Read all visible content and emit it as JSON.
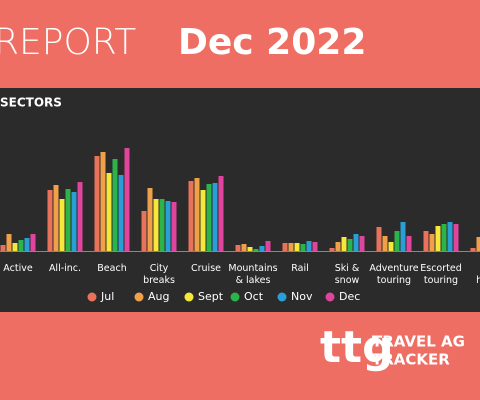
{
  "header": {
    "title_light": "REPORT",
    "title_bold": "Dec 2022"
  },
  "chart_data": {
    "type": "bar",
    "title": "SECTORS",
    "categories": [
      "Active",
      "All-inc.",
      "Beach",
      "City\nbreaks",
      "Cruise",
      "Mountains\n& lakes",
      "Rail",
      "Ski &\nsnow",
      "Adventure\ntouring",
      "Escorted\ntouring",
      "W\nhone"
    ],
    "series": [
      {
        "name": "Jul",
        "color": "#e8735a",
        "values": [
          6,
          61,
          95,
          40,
          70,
          6,
          8,
          3,
          24,
          20,
          3
        ]
      },
      {
        "name": "Aug",
        "color": "#f0a048",
        "values": [
          17,
          66,
          99,
          63,
          73,
          7,
          8,
          9,
          15,
          17,
          14
        ]
      },
      {
        "name": "Sept",
        "color": "#f5e83a",
        "values": [
          8,
          52,
          78,
          52,
          61,
          4,
          8,
          14,
          9,
          25,
          null
        ]
      },
      {
        "name": "Oct",
        "color": "#2cb34a",
        "values": [
          11,
          62,
          92,
          52,
          67,
          2,
          7,
          12,
          20,
          27,
          null
        ]
      },
      {
        "name": "Nov",
        "color": "#2a9fd6",
        "values": [
          13,
          59,
          76,
          50,
          68,
          5,
          10,
          17,
          29,
          29,
          null
        ]
      },
      {
        "name": "Dec",
        "color": "#e0449c",
        "values": [
          17,
          69,
          103,
          49,
          75,
          10,
          9,
          15,
          15,
          27,
          null
        ]
      }
    ],
    "ylim": [
      0,
      110
    ]
  },
  "footer": {
    "logo": "ttg",
    "brand_line1": "TRAVEL AG",
    "brand_line2": "TRACKER"
  }
}
